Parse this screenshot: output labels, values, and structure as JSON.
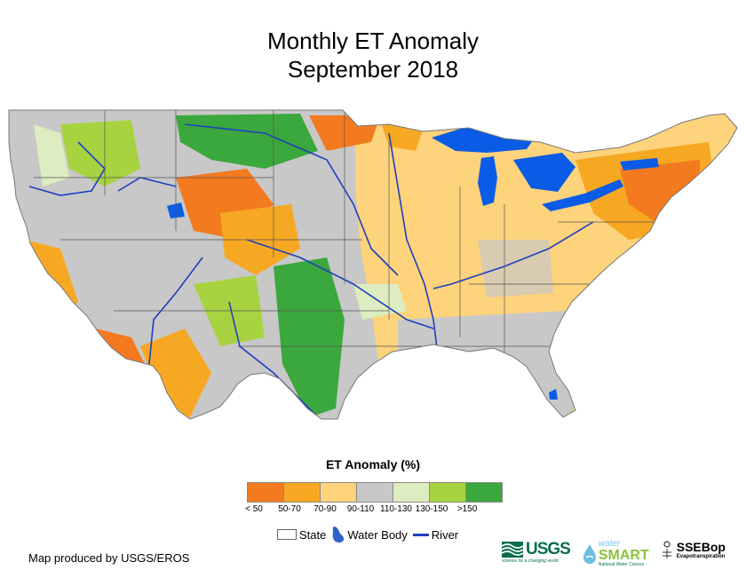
{
  "title": {
    "line1": "Monthly ET Anomaly",
    "line2": "September 2018"
  },
  "colors": {
    "water": "#0a5ce6",
    "river": "#1f3fc0",
    "state_border": "#555555",
    "no_data": "#ffffff"
  },
  "legend": {
    "title": "ET Anomaly (%)",
    "classes": [
      {
        "label": "< 50",
        "color": "#f47a20"
      },
      {
        "label": "50-70",
        "color": "#f7a823"
      },
      {
        "label": "70-90",
        "color": "#fdd37c"
      },
      {
        "label": "90-110",
        "color": "#c8c8c8"
      },
      {
        "label": "110-130",
        "color": "#deedc1"
      },
      {
        "label": "130-150",
        "color": "#a8d340"
      },
      {
        "label": ">150",
        "color": "#3aa83c"
      }
    ],
    "key": {
      "state": "State",
      "water_body": "Water Body",
      "river": "River"
    }
  },
  "credit": "Map produced by USGS/EROS",
  "logos": {
    "usgs": "USGS",
    "usgs_tagline": "science for a changing world",
    "watersmart_water": "water",
    "watersmart_smart": "SMART",
    "watersmart_sub": "National Water Census",
    "ssebop": "SSEBop",
    "ssebop_sub": "Evapotranspiration"
  }
}
